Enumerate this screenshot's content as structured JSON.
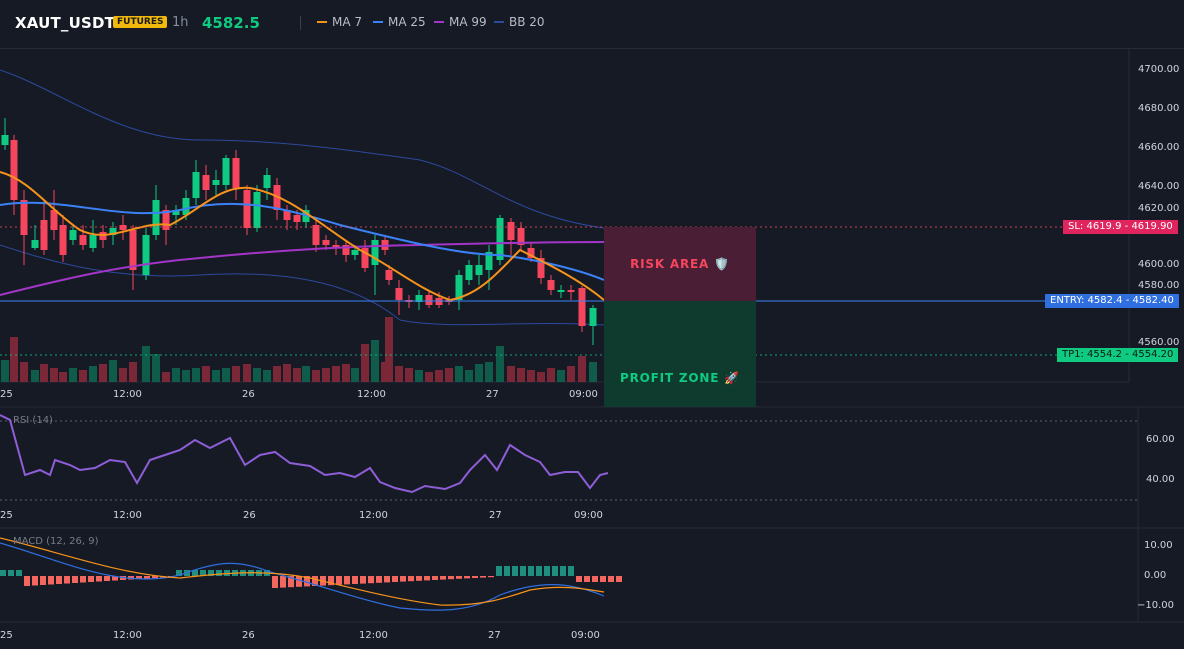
{
  "header": {
    "symbol": "XAUT_USDT",
    "market_badge": "FUTURES",
    "timeframe": "1h",
    "last_price": "4582.5",
    "indicators": [
      {
        "label": "MA 7",
        "color": "#f7931a"
      },
      {
        "label": "MA 25",
        "color": "#3b82f6"
      },
      {
        "label": "MA 99",
        "color": "#a335c9"
      },
      {
        "label": "BB 20",
        "color": "#2c4a9e"
      }
    ]
  },
  "colors": {
    "up": "#0ecb81",
    "down": "#f6465d",
    "background": "#161a25",
    "grid": "#1f2330"
  },
  "price_axis": {
    "labels": [
      "4700.00",
      "4680.00",
      "4660.00",
      "4640.00",
      "4620.00",
      "4600.00",
      "4580.00",
      "4560.00"
    ]
  },
  "time_axis": {
    "labels": [
      "25",
      "12:00",
      "26",
      "12:00",
      "27",
      "09:00"
    ]
  },
  "levels": {
    "stop_loss": {
      "tag": "SL: 4619.9",
      "axis_value": "4619.90",
      "price": 4619.9
    },
    "entry": {
      "tag": "ENTRY: 4582.4",
      "axis_value": "4582.40",
      "price": 4582.4
    },
    "take_profit": {
      "tag": "TP1: 4554.2",
      "axis_value": "4554.20",
      "price": 4554.2
    }
  },
  "zones": {
    "risk_label": "RISK AREA 🛡️",
    "profit_label": "PROFIT ZONE 🚀"
  },
  "rsi": {
    "title": "RSI (14)",
    "axis_labels": [
      "60.00",
      "40.00"
    ]
  },
  "macd": {
    "title": "MACD (12, 26, 9)",
    "axis_labels": [
      "10.00",
      "0.00",
      "−10.00"
    ]
  }
}
